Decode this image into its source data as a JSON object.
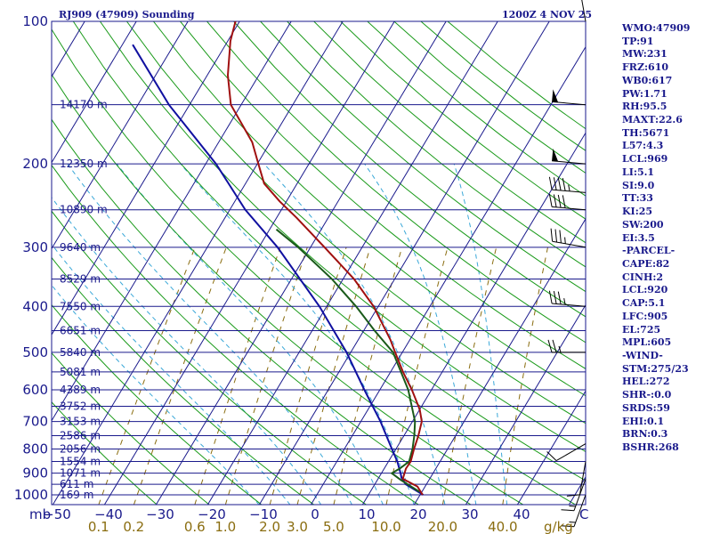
{
  "header": {
    "station": "RJ909 (47909) Sounding",
    "time": "1200Z  4 NOV 25"
  },
  "colors": {
    "axis": "#1a1a8c",
    "temperature": "#a01010",
    "dewpoint": "#1a5a1a",
    "parcel": "#1010a0",
    "isotherm": "#1a1a8c",
    "dry_adiabat": "#1a9a1a",
    "moist_adiabat": "#3aa8d8",
    "mixing_ratio": "#8a6d10",
    "wind_barb": "#000000"
  },
  "chart_data": {
    "type": "skew-t",
    "title": "RJ909 (47909) Sounding",
    "valid": "1200Z  4 NOV 25",
    "pressure_levels_hpa": [
      100,
      200,
      300,
      400,
      500,
      600,
      700,
      800,
      900,
      1000
    ],
    "pressure_labels": [
      "100",
      "200",
      "300",
      "400",
      "500",
      "600",
      "700",
      "800",
      "900",
      "1000"
    ],
    "height_lines": [
      {
        "p": 150,
        "label": "14170 m"
      },
      {
        "p": 200,
        "label": "12350 m"
      },
      {
        "p": 250,
        "label": "10890 m"
      },
      {
        "p": 300,
        "label": "9640 m"
      },
      {
        "p": 350,
        "label": "8529 m"
      },
      {
        "p": 400,
        "label": "7550 m"
      },
      {
        "p": 450,
        "label": "6651 m"
      },
      {
        "p": 500,
        "label": "5840 m"
      },
      {
        "p": 550,
        "label": "5081 m"
      },
      {
        "p": 600,
        "label": "4389 m"
      },
      {
        "p": 650,
        "label": "3752 m"
      },
      {
        "p": 700,
        "label": "3153 m"
      },
      {
        "p": 750,
        "label": "2586 m"
      },
      {
        "p": 800,
        "label": "2056 m"
      },
      {
        "p": 850,
        "label": "1554 m"
      },
      {
        "p": 900,
        "label": "1071 m"
      },
      {
        "p": 950,
        "label": "611 m"
      },
      {
        "p": 1000,
        "label": "169 m"
      }
    ],
    "x_axis_unit": "mb",
    "temperature_ticks": [
      -50,
      -40,
      -30,
      -20,
      -10,
      0,
      10,
      20,
      30,
      40
    ],
    "temperature_tick_labels": [
      "−50",
      "−40",
      "−30",
      "−20",
      "−10",
      "0",
      "10",
      "20",
      "30",
      "40"
    ],
    "temperature_unit": "C",
    "mixing_ratio_ticks": [
      0.1,
      0.2,
      0.6,
      1.0,
      2.0,
      3.0,
      5.0,
      10.0,
      20.0,
      40.0
    ],
    "mixing_ratio_labels": [
      "0.1",
      "0.2",
      "0.6",
      "1.0",
      "2.0",
      "3.0",
      "5.0",
      "10.0",
      "20.0",
      "40.0"
    ],
    "mixing_ratio_unit": "g/kg",
    "temperature_profile": [
      {
        "p": 1000,
        "t": 20.5
      },
      {
        "p": 960,
        "t": 18.5
      },
      {
        "p": 925,
        "t": 14.8
      },
      {
        "p": 880,
        "t": 14.2
      },
      {
        "p": 850,
        "t": 14.3
      },
      {
        "p": 800,
        "t": 13.5
      },
      {
        "p": 750,
        "t": 12.8
      },
      {
        "p": 700,
        "t": 11.8
      },
      {
        "p": 660,
        "t": 10.0
      },
      {
        "p": 600,
        "t": 6.2
      },
      {
        "p": 550,
        "t": 2.4
      },
      {
        "p": 500,
        "t": -1.4
      },
      {
        "p": 470,
        "t": -3.8
      },
      {
        "p": 400,
        "t": -10.9
      },
      {
        "p": 350,
        "t": -17.9
      },
      {
        "p": 300,
        "t": -27.3
      },
      {
        "p": 260,
        "t": -36.1
      },
      {
        "p": 240,
        "t": -41.3
      },
      {
        "p": 220,
        "t": -46.4
      },
      {
        "p": 200,
        "t": -49.8
      },
      {
        "p": 180,
        "t": -53.5
      },
      {
        "p": 150,
        "t": -62.0
      },
      {
        "p": 130,
        "t": -66.0
      },
      {
        "p": 110,
        "t": -69.5
      },
      {
        "p": 100,
        "t": -70.8
      }
    ],
    "dewpoint_profile": [
      {
        "p": 985,
        "t": 19.5
      },
      {
        "p": 930,
        "t": 14.5
      },
      {
        "p": 900,
        "t": 12.0
      },
      {
        "p": 880,
        "t": 13.0
      },
      {
        "p": 850,
        "t": 14.0
      },
      {
        "p": 800,
        "t": 13.2
      },
      {
        "p": 750,
        "t": 12.0
      },
      {
        "p": 700,
        "t": 10.5
      },
      {
        "p": 600,
        "t": 5.5
      },
      {
        "p": 500,
        "t": -1.8
      },
      {
        "p": 450,
        "t": -7.9
      },
      {
        "p": 400,
        "t": -14.3
      },
      {
        "p": 350,
        "t": -22.2
      },
      {
        "p": 300,
        "t": -32.4
      },
      {
        "p": 275,
        "t": -38.7
      }
    ],
    "parcel_profile": [
      {
        "p": 1000,
        "t": 20.6
      },
      {
        "p": 950,
        "t": 16.0
      },
      {
        "p": 920,
        "t": 14.4
      },
      {
        "p": 900,
        "t": 13.7
      },
      {
        "p": 850,
        "t": 11.7
      },
      {
        "p": 800,
        "t": 9.2
      },
      {
        "p": 700,
        "t": 3.8
      },
      {
        "p": 600,
        "t": -3.0
      },
      {
        "p": 500,
        "t": -10.8
      },
      {
        "p": 400,
        "t": -21.4
      },
      {
        "p": 300,
        "t": -36.4
      },
      {
        "p": 250,
        "t": -47.0
      },
      {
        "p": 200,
        "t": -58.0
      },
      {
        "p": 150,
        "t": -74.0
      },
      {
        "p": 112,
        "t": -88.0
      }
    ],
    "wind_barbs": [
      {
        "p": 100,
        "direction": 350,
        "speed_kt": 55
      },
      {
        "p": 150,
        "direction": 275,
        "speed_kt": 50
      },
      {
        "p": 200,
        "direction": 275,
        "speed_kt": 50
      },
      {
        "p": 230,
        "direction": 275,
        "speed_kt": 45
      },
      {
        "p": 250,
        "direction": 275,
        "speed_kt": 40
      },
      {
        "p": 300,
        "direction": 280,
        "speed_kt": 35
      },
      {
        "p": 400,
        "direction": 275,
        "speed_kt": 35
      },
      {
        "p": 500,
        "direction": 270,
        "speed_kt": 25
      },
      {
        "p": 780,
        "direction": 240,
        "speed_kt": 10
      },
      {
        "p": 850,
        "direction": 190,
        "speed_kt": 10
      },
      {
        "p": 925,
        "direction": 200,
        "speed_kt": 15
      },
      {
        "p": 1000,
        "direction": 200,
        "speed_kt": 15
      }
    ]
  },
  "indices": [
    "WMO:47909",
    "TP:91",
    "MW:231",
    "FRZ:610",
    "WB0:617",
    "PW:1.71",
    "RH:95.5",
    "MAXT:22.6",
    "TH:5671",
    "L57:4.3",
    "LCL:969",
    "LI:5.1",
    "SI:9.0",
    "TT:33",
    "KI:25",
    "SW:200",
    "EI:3.5",
    "-PARCEL-",
    "CAPE:82",
    "CINH:2",
    "LCL:920",
    "CAP:5.1",
    "LFC:905",
    "EL:725",
    "MPL:605",
    "-WIND-",
    "STM:275/23",
    "HEL:272",
    "SHR-:0.0",
    "SRDS:59",
    "EHI:0.1",
    "BRN:0.3",
    "BSHR:268"
  ]
}
